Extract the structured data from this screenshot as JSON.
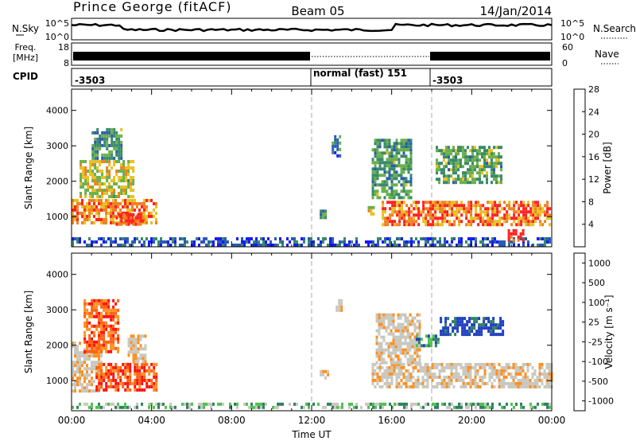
{
  "header": {
    "title": "Prince George (fitACF)",
    "beam": "Beam 05",
    "date": "14/Jan/2014"
  },
  "noise_panel": {
    "left_label": "N.Sky",
    "right_label": "N.Search",
    "left_tick_top": "10^5",
    "left_tick_bottom": "10^0",
    "right_tick_top": "10^5",
    "right_tick_bottom": "10^0"
  },
  "freq_panel": {
    "left_label_1": "Freq.",
    "left_label_2": "[MHz]",
    "right_label": "Nave",
    "left_tick_top": "18",
    "left_tick_bottom": "8",
    "right_tick_top": "60",
    "right_tick_bottom": "0"
  },
  "cpid_panel": {
    "label": "CPID",
    "segments": [
      {
        "start_hour": 0,
        "end_hour": 12,
        "text": "-3503"
      },
      {
        "start_hour": 12,
        "end_hour": 18,
        "text": "normal (fast) 151"
      },
      {
        "start_hour": 18,
        "end_hour": 24,
        "text": "-3503"
      }
    ]
  },
  "chart_data": [
    {
      "type": "heatmap",
      "panel": "power",
      "ylabel": "Slant Range [km]",
      "ylim": [
        150,
        4600
      ],
      "yticks": [
        "1000",
        "2000",
        "3000",
        "4000"
      ],
      "xlim_hours": [
        0,
        24
      ],
      "colorbar_label": "Power [dB]",
      "colorbar_ticks": [
        "4",
        "8",
        "12",
        "16",
        "20",
        "24",
        "28"
      ],
      "colorbar_range": [
        0,
        30
      ],
      "colors": [
        "#1a1aff",
        "#2a5cb0",
        "#3a8a6a",
        "#6ab04a",
        "#e8c020",
        "#f08020",
        "#ff2020"
      ],
      "regions": [
        {
          "t0": 0.0,
          "t1": 4.3,
          "r0": 800,
          "r1": 1500,
          "level": 0.8
        },
        {
          "t0": 0.4,
          "t1": 3.2,
          "r0": 1500,
          "r1": 2600,
          "level": 0.6
        },
        {
          "t0": 1.0,
          "t1": 2.5,
          "r0": 2600,
          "r1": 3500,
          "level": 0.4
        },
        {
          "t0": 2.2,
          "t1": 3.6,
          "r0": 700,
          "r1": 1100,
          "level": 0.9
        },
        {
          "t0": 0.0,
          "t1": 24.0,
          "r0": 170,
          "r1": 420,
          "level": 0.2
        },
        {
          "t0": 13.0,
          "t1": 13.5,
          "r0": 2700,
          "r1": 3300,
          "level": 0.3
        },
        {
          "t0": 12.4,
          "t1": 12.8,
          "r0": 900,
          "r1": 1200,
          "level": 0.4
        },
        {
          "t0": 14.8,
          "t1": 15.2,
          "r0": 1000,
          "r1": 1300,
          "level": 0.6
        },
        {
          "t0": 15.5,
          "t1": 24.0,
          "r0": 700,
          "r1": 1450,
          "level": 0.8
        },
        {
          "t0": 15.0,
          "t1": 17.0,
          "r0": 1450,
          "r1": 3200,
          "level": 0.4
        },
        {
          "t0": 18.2,
          "t1": 21.5,
          "r0": 1900,
          "r1": 3000,
          "level": 0.45
        },
        {
          "t0": 21.8,
          "t1": 22.6,
          "r0": 300,
          "r1": 650,
          "level": 0.95
        }
      ]
    },
    {
      "type": "heatmap",
      "panel": "velocity",
      "ylabel": "Slant Range [km]",
      "ylim": [
        150,
        4600
      ],
      "yticks": [
        "1000",
        "2000",
        "3000",
        "4000"
      ],
      "xticks": [
        "00:00",
        "04:00",
        "08:00",
        "12:00",
        "16:00",
        "20:00",
        "00:00"
      ],
      "xlabel": "Time UT",
      "xlim_hours": [
        0,
        24
      ],
      "colorbar_label": "Velocity [m s⁻¹]",
      "colorbar_ticks": [
        "-1000",
        "-500",
        "-100",
        "-25",
        "25",
        "100",
        "500",
        "1000"
      ],
      "colors": [
        "#ff1010",
        "#ff6010",
        "#ff9020",
        "#c8c8c0",
        "#c8c8c0",
        "#50c050",
        "#308060",
        "#2040c0"
      ],
      "regions": [
        {
          "t0": 0.0,
          "t1": 1.6,
          "r0": 700,
          "r1": 2100,
          "level": 0.45
        },
        {
          "t0": 0.6,
          "t1": 2.4,
          "r0": 1800,
          "r1": 3300,
          "level": 0.2
        },
        {
          "t0": 1.2,
          "t1": 4.3,
          "r0": 700,
          "r1": 1500,
          "level": 0.15
        },
        {
          "t0": 2.8,
          "t1": 3.8,
          "r0": 1500,
          "r1": 2300,
          "level": 0.45
        },
        {
          "t0": 0.0,
          "t1": 24.0,
          "r0": 170,
          "r1": 380,
          "level": 0.7
        },
        {
          "t0": 15.0,
          "t1": 24.0,
          "r0": 750,
          "r1": 1500,
          "level": 0.45
        },
        {
          "t0": 15.2,
          "t1": 17.5,
          "r0": 1500,
          "r1": 2900,
          "level": 0.45
        },
        {
          "t0": 18.4,
          "t1": 21.6,
          "r0": 2300,
          "r1": 2800,
          "level": 0.95
        },
        {
          "t0": 17.2,
          "t1": 18.4,
          "r0": 1900,
          "r1": 2300,
          "level": 0.8
        },
        {
          "t0": 13.2,
          "t1": 13.6,
          "r0": 2900,
          "r1": 3300,
          "level": 0.45
        },
        {
          "t0": 12.4,
          "t1": 12.9,
          "r0": 1000,
          "r1": 1300,
          "level": 0.45
        }
      ]
    }
  ]
}
